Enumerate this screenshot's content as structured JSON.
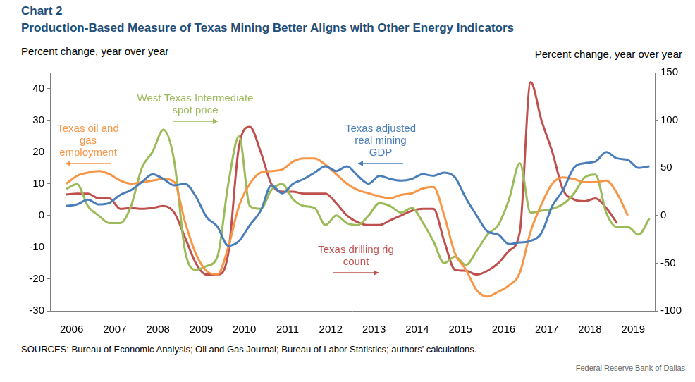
{
  "chart_data": {
    "type": "line",
    "title": "Chart 2",
    "subtitle": "Production-Based Measure of Texas Mining Better Aligns with Other Energy Indicators",
    "ylabel": "Percent change, year over year",
    "y2label": "Percent change, year over year",
    "source": "SOURCES: Bureau of Economic Analysis; Oil and Gas Journal; Bureau of Labor Statistics; authors' calculations.",
    "credit": "Federal Reserve Bank of Dallas",
    "categories": [
      null,
      "2006",
      null,
      null,
      null,
      "2007",
      null,
      null,
      null,
      "2008",
      null,
      null,
      null,
      "2009",
      null,
      null,
      null,
      "2010",
      null,
      null,
      null,
      "2011",
      null,
      null,
      null,
      "2012",
      null,
      null,
      null,
      "2013",
      null,
      null,
      null,
      "2014",
      null,
      null,
      null,
      "2015",
      null,
      null,
      null,
      "2016",
      null,
      null,
      null,
      "2017",
      null,
      null,
      null,
      "2018",
      null,
      null,
      null,
      "2019",
      null,
      null
    ],
    "ylim": [
      -30,
      45
    ],
    "yticks": [
      -30,
      -20,
      -10,
      0,
      10,
      20,
      30,
      40
    ],
    "y2lim": [
      -100,
      150
    ],
    "y2ticks": [
      -100,
      -50,
      0,
      50,
      100,
      150
    ],
    "grid": false,
    "series": [
      {
        "name": "Texas adjusted real mining GDP",
        "color": "#4a7ebb",
        "axis": "y",
        "values": [
          null,
          3,
          3.5,
          5,
          3.5,
          4,
          6.5,
          8,
          10.5,
          13,
          11.5,
          9.5,
          10,
          6,
          -0.5,
          -3.5,
          -9.5,
          -8,
          -3,
          1.5,
          9.5,
          7,
          10,
          11.5,
          13.5,
          15.5,
          14,
          15.5,
          12.5,
          10,
          12.5,
          11.5,
          11,
          11.5,
          13,
          12.5,
          13.5,
          12,
          5.5,
          0,
          -5,
          -6,
          -9,
          -8.5,
          -8,
          -5.5,
          3,
          8,
          15,
          16.5,
          17,
          20,
          18,
          17.5,
          15,
          15.5
        ]
      },
      {
        "name": "Texas oil and gas employment",
        "color": "#f79646",
        "axis": "y",
        "values": [
          null,
          10,
          12.5,
          13.5,
          14,
          13,
          11,
          10,
          10.5,
          11,
          11.5,
          10.5,
          -2,
          -12,
          -17.5,
          -18.5,
          -10,
          3,
          10,
          13.5,
          14,
          14.5,
          17,
          18,
          18,
          16,
          13,
          10,
          8,
          7,
          6,
          5.5,
          6.5,
          7,
          8.5,
          9,
          0,
          -12,
          -17,
          -23.5,
          -25.5,
          -24,
          -22,
          -18,
          -5,
          3.5,
          10,
          12,
          11.5,
          10.5,
          10.5,
          11,
          7,
          0,
          null,
          null
        ]
      },
      {
        "name": "West Texas Intermediate spot price",
        "color": "#9bbb59",
        "axis": "y2",
        "values": [
          null,
          28,
          33,
          10,
          0,
          -8,
          -8,
          10,
          50,
          67,
          90,
          57,
          -37,
          -57,
          -53,
          -43,
          33,
          83,
          10,
          7,
          27,
          33,
          17,
          10,
          8,
          -10,
          0,
          -8,
          -10,
          0,
          13,
          10,
          3,
          8,
          -7,
          -27,
          -50,
          -43,
          -52,
          -37,
          -20,
          -10,
          17,
          55,
          3,
          5,
          7,
          12,
          23,
          40,
          43,
          3,
          -12,
          -12,
          -20,
          -3
        ]
      },
      {
        "name": "Texas drilling rig count",
        "color": "#c0504d",
        "axis": "y2",
        "values": [
          null,
          22,
          23,
          23,
          18,
          18,
          7,
          8,
          7,
          8,
          10,
          3,
          -23,
          -50,
          -62,
          -62,
          -40,
          73,
          93,
          67,
          33,
          25,
          25,
          23,
          23,
          23,
          13,
          0,
          -7,
          -10,
          -10,
          -5,
          0,
          5,
          7,
          7,
          -27,
          -57,
          -58,
          -62,
          -58,
          -50,
          -37,
          -17,
          140,
          100,
          67,
          27,
          17,
          15,
          18,
          8,
          -8,
          null,
          null,
          null
        ]
      }
    ]
  }
}
